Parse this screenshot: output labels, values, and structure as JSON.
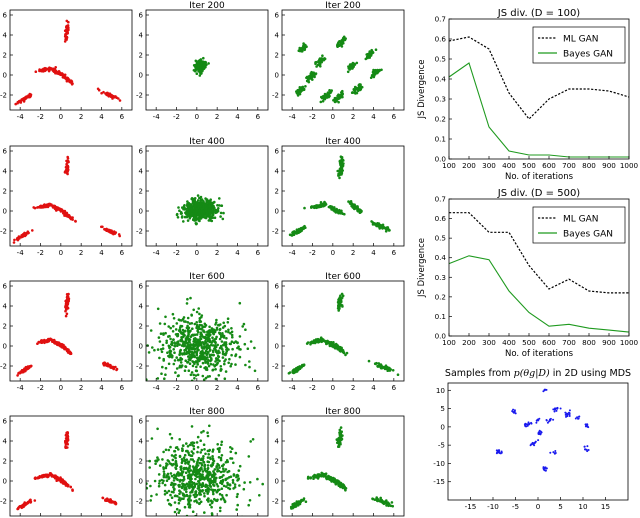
{
  "colors": {
    "target": "#e01010",
    "generated": "#158a15",
    "ml_gan": "#000000",
    "bayes_gan": "#1f9a1f",
    "mds": "#1a1aee",
    "axis": "#000000"
  },
  "chart_data": [
    {
      "type": "scatter",
      "subplots": [
        {
          "panel": "r1c1",
          "title": "",
          "role": "target",
          "color": "red",
          "xticks": [
            -4,
            -2,
            0,
            2,
            4,
            6
          ],
          "yticks": [
            -2,
            0,
            2,
            4,
            6
          ],
          "xlim": [
            -5,
            7
          ],
          "ylim": [
            -3.5,
            6.5
          ],
          "clusters": [
            [
              0.6,
              4.3
            ],
            [
              -1.6,
              0.5
            ],
            [
              -0.4,
              0.3
            ],
            [
              0.5,
              -0.3
            ],
            [
              -3.6,
              -2.4
            ],
            [
              4.8,
              -2.0
            ]
          ]
        },
        {
          "panel": "r1c2",
          "title": "Iter 200",
          "role": "generated",
          "color": "green",
          "xticks": [
            -4,
            -2,
            0,
            2,
            4,
            6
          ],
          "yticks": [
            -2,
            0,
            2,
            4,
            6
          ],
          "xlim": [
            -5,
            7
          ],
          "ylim": [
            -3.5,
            6.5
          ],
          "clusters": [
            [
              0.3,
              0.9
            ]
          ]
        },
        {
          "panel": "r1c3",
          "title": "Iter 200",
          "role": "generated",
          "color": "green",
          "xticks": [
            -4,
            -2,
            0,
            2,
            4,
            6
          ],
          "yticks": [
            -2,
            0,
            2,
            4,
            6
          ],
          "xlim": [
            -5,
            7
          ],
          "ylim": [
            -3.5,
            6.5
          ],
          "clusters": [
            [
              -3.0,
              2.6
            ],
            [
              0.9,
              3.3
            ],
            [
              3.6,
              2.0
            ],
            [
              -1.2,
              1.4
            ],
            [
              1.8,
              0.8
            ],
            [
              4.2,
              0.2
            ],
            [
              -2.2,
              -0.2
            ],
            [
              -3.2,
              -1.5
            ],
            [
              -0.6,
              -2.0
            ],
            [
              0.6,
              -2.2
            ],
            [
              2.4,
              -1.4
            ]
          ]
        }
      ]
    },
    {
      "type": "scatter",
      "subplots": [
        {
          "panel": "r2c1",
          "title": "",
          "role": "target",
          "color": "red",
          "xticks": [
            -4,
            -2,
            0,
            2,
            4,
            6
          ],
          "yticks": [
            -2,
            0,
            2,
            4,
            6
          ],
          "xlim": [
            -5,
            7
          ],
          "ylim": [
            -3.5,
            6.5
          ],
          "clusters": [
            [
              0.6,
              4.3
            ],
            [
              -1.6,
              0.5
            ],
            [
              -0.4,
              0.3
            ],
            [
              0.5,
              -0.3
            ],
            [
              -3.6,
              -2.4
            ],
            [
              4.8,
              -2.0
            ]
          ]
        },
        {
          "panel": "r2c2",
          "title": "Iter 400",
          "role": "generated",
          "color": "green",
          "xticks": [
            -4,
            -2,
            0,
            2,
            4,
            6
          ],
          "yticks": [
            -2,
            0,
            2,
            4,
            6
          ],
          "xlim": [
            -5,
            7
          ],
          "ylim": [
            -3.5,
            6.5
          ],
          "clusters": [
            [
              0.3,
              0.1
            ]
          ]
        },
        {
          "panel": "r2c3",
          "title": "Iter 400",
          "role": "generated",
          "color": "green",
          "xticks": [
            -4,
            -2,
            0,
            2,
            4,
            6
          ],
          "yticks": [
            -2,
            0,
            2,
            4,
            6
          ],
          "xlim": [
            -5,
            7
          ],
          "ylim": [
            -3.5,
            6.5
          ],
          "clusters": [
            [
              0.8,
              4.4
            ],
            [
              -1.4,
              0.5
            ],
            [
              0.3,
              0.1
            ],
            [
              2.2,
              0.4
            ],
            [
              -3.4,
              -2.0
            ],
            [
              4.6,
              -1.5
            ]
          ]
        }
      ]
    },
    {
      "type": "scatter",
      "subplots": [
        {
          "panel": "r3c1",
          "title": "",
          "role": "target",
          "color": "red",
          "xticks": [
            -4,
            -2,
            0,
            2,
            4,
            6
          ],
          "yticks": [
            -2,
            0,
            2,
            4,
            6
          ],
          "xlim": [
            -5,
            7
          ],
          "ylim": [
            -3.5,
            6.5
          ],
          "clusters": [
            [
              0.6,
              4.3
            ],
            [
              -1.6,
              0.5
            ],
            [
              -0.4,
              0.3
            ],
            [
              0.5,
              -0.3
            ],
            [
              -3.6,
              -2.4
            ],
            [
              4.8,
              -2.0
            ]
          ]
        },
        {
          "panel": "r3c2",
          "title": "Iter 600",
          "role": "generated",
          "color": "green",
          "xticks": [
            -4,
            -2,
            0,
            2,
            4,
            6
          ],
          "yticks": [
            -2,
            0,
            2,
            4,
            6
          ],
          "xlim": [
            -5,
            7
          ],
          "ylim": [
            -3.5,
            6.5
          ],
          "clusters": [
            [
              0.2,
              0.0
            ]
          ]
        },
        {
          "panel": "r3c3",
          "title": "Iter 600",
          "role": "generated",
          "color": "green",
          "xticks": [
            -4,
            -2,
            0,
            2,
            4,
            6
          ],
          "yticks": [
            -2,
            0,
            2,
            4,
            6
          ],
          "xlim": [
            -5,
            7
          ],
          "ylim": [
            -3.5,
            6.5
          ],
          "clusters": [
            [
              0.7,
              4.4
            ],
            [
              -1.5,
              0.5
            ],
            [
              -0.2,
              0.2
            ],
            [
              0.7,
              -0.3
            ],
            [
              -3.5,
              -2.3
            ],
            [
              5.0,
              -2.1
            ]
          ]
        }
      ]
    },
    {
      "type": "scatter",
      "subplots": [
        {
          "panel": "r4c1",
          "title": "",
          "role": "target",
          "color": "red",
          "xticks": [
            -4,
            -2,
            0,
            2,
            4,
            6
          ],
          "yticks": [
            -2,
            0,
            2,
            4,
            6
          ],
          "xlim": [
            -5,
            7
          ],
          "ylim": [
            -3.5,
            6.5
          ],
          "clusters": [
            [
              0.6,
              4.3
            ],
            [
              -1.6,
              0.5
            ],
            [
              -0.4,
              0.3
            ],
            [
              0.5,
              -0.3
            ],
            [
              -3.6,
              -2.4
            ],
            [
              4.8,
              -2.0
            ]
          ]
        },
        {
          "panel": "r4c2",
          "title": "Iter 800",
          "role": "generated",
          "color": "green",
          "xticks": [
            -4,
            -2,
            0,
            2,
            4,
            6
          ],
          "yticks": [
            -2,
            0,
            2,
            4,
            6
          ],
          "xlim": [
            -5,
            7
          ],
          "ylim": [
            -3.5,
            6.5
          ],
          "clusters": [
            [
              0.0,
              0.3
            ]
          ]
        },
        {
          "panel": "r4c3",
          "title": "Iter 800",
          "role": "generated",
          "color": "green",
          "xticks": [
            -4,
            -2,
            0,
            2,
            4,
            6
          ],
          "yticks": [
            -2,
            0,
            2,
            4,
            6
          ],
          "xlim": [
            -5,
            7
          ],
          "ylim": [
            -3.5,
            6.5
          ],
          "clusters": [
            [
              0.7,
              4.4
            ],
            [
              -1.5,
              0.5
            ],
            [
              -0.2,
              0.2
            ],
            [
              0.7,
              -0.3
            ],
            [
              -3.5,
              -2.3
            ],
            [
              5.0,
              -2.1
            ]
          ]
        }
      ]
    },
    {
      "type": "line",
      "title": "JS div. (D = 100)",
      "xlabel": "No. of iterations",
      "ylabel": "JS Divergence",
      "x": [
        100,
        200,
        300,
        400,
        500,
        600,
        700,
        800,
        900,
        1000
      ],
      "xlim": [
        100,
        1000
      ],
      "ylim": [
        0.0,
        0.7
      ],
      "yticks": [
        0.0,
        0.1,
        0.2,
        0.3,
        0.4,
        0.5,
        0.6,
        0.7
      ],
      "legend_position": "top-right",
      "series": [
        {
          "name": "ML GAN",
          "style": "dotted",
          "color": "black",
          "values": [
            0.59,
            0.61,
            0.55,
            0.33,
            0.2,
            0.3,
            0.35,
            0.35,
            0.34,
            0.31
          ]
        },
        {
          "name": "Bayes GAN",
          "style": "solid",
          "color": "green",
          "values": [
            0.41,
            0.48,
            0.16,
            0.04,
            0.02,
            0.02,
            0.01,
            0.01,
            0.01,
            0.01
          ]
        }
      ]
    },
    {
      "type": "line",
      "title": "JS div. (D = 500)",
      "xlabel": "No. of iterations",
      "ylabel": "JS Divergence",
      "x": [
        100,
        200,
        300,
        400,
        500,
        600,
        700,
        800,
        900,
        1000
      ],
      "xlim": [
        100,
        1000
      ],
      "ylim": [
        0.0,
        0.7
      ],
      "yticks": [
        0.0,
        0.1,
        0.2,
        0.3,
        0.4,
        0.5,
        0.6,
        0.7
      ],
      "legend_position": "top-right",
      "series": [
        {
          "name": "ML GAN",
          "style": "dotted",
          "color": "black",
          "values": [
            0.63,
            0.63,
            0.53,
            0.53,
            0.36,
            0.24,
            0.29,
            0.23,
            0.22,
            0.22
          ]
        },
        {
          "name": "Bayes GAN",
          "style": "solid",
          "color": "green",
          "values": [
            0.37,
            0.41,
            0.39,
            0.23,
            0.12,
            0.05,
            0.06,
            0.04,
            0.03,
            0.02
          ]
        }
      ]
    },
    {
      "type": "scatter",
      "title": "Samples from p(θg|D) in 2D using MDS",
      "title_prefix": "Samples from",
      "title_math": "p(θg|D)",
      "title_suffix": "in 2D using MDS",
      "xlim": [
        -20,
        20
      ],
      "ylim": [
        -20,
        12
      ],
      "xticks": [
        -15,
        -10,
        -5,
        0,
        5,
        10,
        15
      ],
      "yticks": [
        -15,
        -10,
        -5,
        0,
        5,
        10
      ],
      "color": "blue",
      "clusters": [
        [
          1.5,
          10.3
        ],
        [
          -5.3,
          4.2
        ],
        [
          4.0,
          4.8
        ],
        [
          -2.3,
          0.5
        ],
        [
          0.0,
          1.8
        ],
        [
          2.5,
          1.5
        ],
        [
          0.5,
          -1.5
        ],
        [
          6.5,
          3.5
        ],
        [
          9.0,
          2.5
        ],
        [
          11.0,
          0.5
        ],
        [
          -1.0,
          -4.5
        ],
        [
          -8.5,
          -6.8
        ],
        [
          3.5,
          -7.0
        ],
        [
          10.5,
          -6.0
        ],
        [
          1.5,
          -11.5
        ]
      ]
    }
  ]
}
